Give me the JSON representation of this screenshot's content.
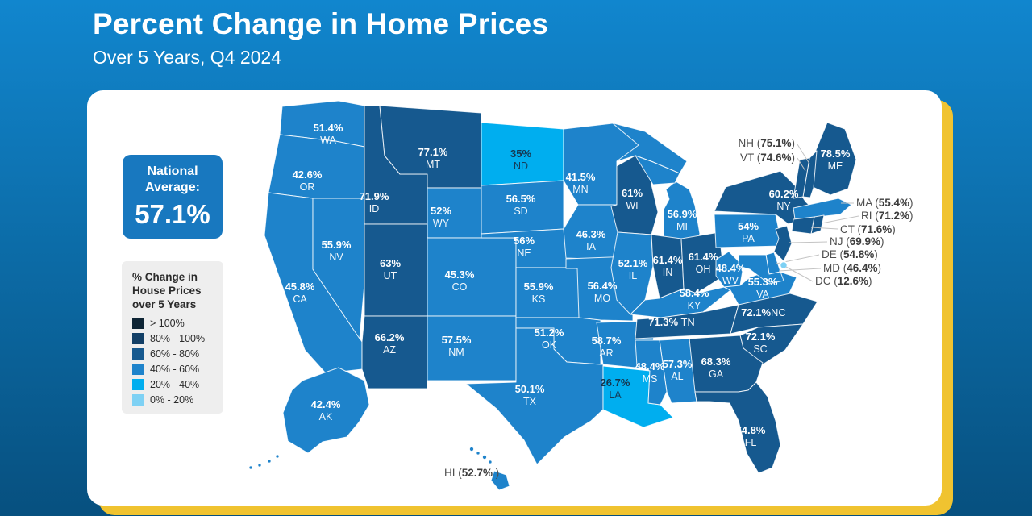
{
  "header": {
    "title": "Percent Change in Home Prices",
    "subtitle": "Over 5 Years, Q4 2024"
  },
  "national_average": {
    "label_line1": "National",
    "label_line2": "Average:",
    "value": "57.1%",
    "background": "#1878bf"
  },
  "legend": {
    "title_lines": [
      "% Change in",
      "House Prices",
      "over 5 Years"
    ],
    "items": [
      {
        "label": "> 100%",
        "color": "#0e2535"
      },
      {
        "label": "80% - 100%",
        "color": "#123f66"
      },
      {
        "label": "60% - 80%",
        "color": "#16598f"
      },
      {
        "label": "40% - 60%",
        "color": "#1e83cb"
      },
      {
        "label": "20% - 40%",
        "color": "#00aeef"
      },
      {
        "label": "0% - 20%",
        "color": "#7ed1f4"
      }
    ]
  },
  "card": {
    "background": "#ffffff",
    "shadow_color": "#f0c330"
  },
  "chart_data": {
    "type": "choropleth",
    "title": "Percent Change in Home Prices",
    "subtitle": "Over 5 Years, Q4 2024",
    "national_average_pct": 57.1,
    "unit": "percent",
    "bucket_colors": {
      "gt100": "#0e2535",
      "80-100": "#123f66",
      "60-80": "#16598f",
      "40-60": "#1e83cb",
      "20-40": "#00aeef",
      "0-20": "#7ed1f4"
    },
    "states": [
      {
        "abbr": "WA",
        "value": 51.4,
        "display": "51.4%",
        "bucket": "40-60"
      },
      {
        "abbr": "OR",
        "value": 42.6,
        "display": "42.6%",
        "bucket": "40-60"
      },
      {
        "abbr": "CA",
        "value": 45.8,
        "display": "45.8%",
        "bucket": "40-60"
      },
      {
        "abbr": "NV",
        "value": 55.9,
        "display": "55.9%",
        "bucket": "40-60"
      },
      {
        "abbr": "ID",
        "value": 71.9,
        "display": "71.9%",
        "bucket": "60-80"
      },
      {
        "abbr": "MT",
        "value": 77.1,
        "display": "77.1%",
        "bucket": "60-80"
      },
      {
        "abbr": "WY",
        "value": 52,
        "display": "52%",
        "bucket": "40-60"
      },
      {
        "abbr": "UT",
        "value": 63,
        "display": "63%",
        "bucket": "60-80"
      },
      {
        "abbr": "AZ",
        "value": 66.2,
        "display": "66.2%",
        "bucket": "60-80"
      },
      {
        "abbr": "CO",
        "value": 45.3,
        "display": "45.3%",
        "bucket": "40-60"
      },
      {
        "abbr": "NM",
        "value": 57.5,
        "display": "57.5%",
        "bucket": "40-60"
      },
      {
        "abbr": "ND",
        "value": 35,
        "display": "35%",
        "bucket": "20-40"
      },
      {
        "abbr": "SD",
        "value": 56.5,
        "display": "56.5%",
        "bucket": "40-60"
      },
      {
        "abbr": "NE",
        "value": 56,
        "display": "56%",
        "bucket": "40-60"
      },
      {
        "abbr": "KS",
        "value": 55.9,
        "display": "55.9%",
        "bucket": "40-60"
      },
      {
        "abbr": "OK",
        "value": 51.2,
        "display": "51.2%",
        "bucket": "40-60"
      },
      {
        "abbr": "TX",
        "value": 50.1,
        "display": "50.1%",
        "bucket": "40-60"
      },
      {
        "abbr": "MN",
        "value": 41.5,
        "display": "41.5%",
        "bucket": "40-60"
      },
      {
        "abbr": "IA",
        "value": 46.3,
        "display": "46.3%",
        "bucket": "40-60"
      },
      {
        "abbr": "MO",
        "value": 56.4,
        "display": "56.4%",
        "bucket": "40-60"
      },
      {
        "abbr": "AR",
        "value": 58.7,
        "display": "58.7%",
        "bucket": "40-60"
      },
      {
        "abbr": "LA",
        "value": 26.7,
        "display": "26.7%",
        "bucket": "20-40"
      },
      {
        "abbr": "WI",
        "value": 61,
        "display": "61%",
        "bucket": "60-80"
      },
      {
        "abbr": "MI",
        "value": 56.9,
        "display": "56.9%",
        "bucket": "40-60"
      },
      {
        "abbr": "IL",
        "value": 52.1,
        "display": "52.1%",
        "bucket": "40-60"
      },
      {
        "abbr": "IN",
        "value": 61.4,
        "display": "61.4%",
        "bucket": "60-80"
      },
      {
        "abbr": "OH",
        "value": 61.4,
        "display": "61.4%",
        "bucket": "60-80"
      },
      {
        "abbr": "KY",
        "value": 58.4,
        "display": "58.4%",
        "bucket": "40-60"
      },
      {
        "abbr": "TN",
        "value": 71.3,
        "display": "71.3%",
        "bucket": "60-80"
      },
      {
        "abbr": "WV",
        "value": 48.4,
        "display": "48.4%",
        "bucket": "40-60"
      },
      {
        "abbr": "VA",
        "value": 55.3,
        "display": "55.3%",
        "bucket": "40-60"
      },
      {
        "abbr": "PA",
        "value": 54,
        "display": "54%",
        "bucket": "40-60"
      },
      {
        "abbr": "NY",
        "value": 60.2,
        "display": "60.2%",
        "bucket": "60-80"
      },
      {
        "abbr": "ME",
        "value": 78.5,
        "display": "78.5%",
        "bucket": "60-80"
      },
      {
        "abbr": "NH",
        "value": 75.1,
        "display": "75.1%",
        "bucket": "60-80"
      },
      {
        "abbr": "VT",
        "value": 74.6,
        "display": "74.6%",
        "bucket": "60-80"
      },
      {
        "abbr": "MA",
        "value": 55.4,
        "display": "55.4%",
        "bucket": "40-60"
      },
      {
        "abbr": "RI",
        "value": 71.2,
        "display": "71.2%",
        "bucket": "60-80"
      },
      {
        "abbr": "CT",
        "value": 71.6,
        "display": "71.6%",
        "bucket": "60-80"
      },
      {
        "abbr": "NJ",
        "value": 69.9,
        "display": "69.9%",
        "bucket": "60-80"
      },
      {
        "abbr": "DE",
        "value": 54.8,
        "display": "54.8%",
        "bucket": "40-60"
      },
      {
        "abbr": "MD",
        "value": 46.4,
        "display": "46.4%",
        "bucket": "40-60"
      },
      {
        "abbr": "DC",
        "value": 12.6,
        "display": "12.6%",
        "bucket": "0-20"
      },
      {
        "abbr": "NC",
        "value": 72.1,
        "display": "72.1%",
        "bucket": "60-80"
      },
      {
        "abbr": "SC",
        "value": 72.1,
        "display": "72.1%",
        "bucket": "60-80"
      },
      {
        "abbr": "GA",
        "value": 68.3,
        "display": "68.3%",
        "bucket": "60-80"
      },
      {
        "abbr": "AL",
        "value": 57.3,
        "display": "57.3%",
        "bucket": "40-60"
      },
      {
        "abbr": "MS",
        "value": 48.4,
        "display": "48.4%",
        "bucket": "40-60"
      },
      {
        "abbr": "FL",
        "value": 74.8,
        "display": "74.8%",
        "bucket": "60-80"
      },
      {
        "abbr": "AK",
        "value": 42.4,
        "display": "42.4%",
        "bucket": "40-60"
      },
      {
        "abbr": "HI",
        "value": 52.7,
        "display": "52.7%",
        "bucket": "40-60"
      }
    ]
  }
}
